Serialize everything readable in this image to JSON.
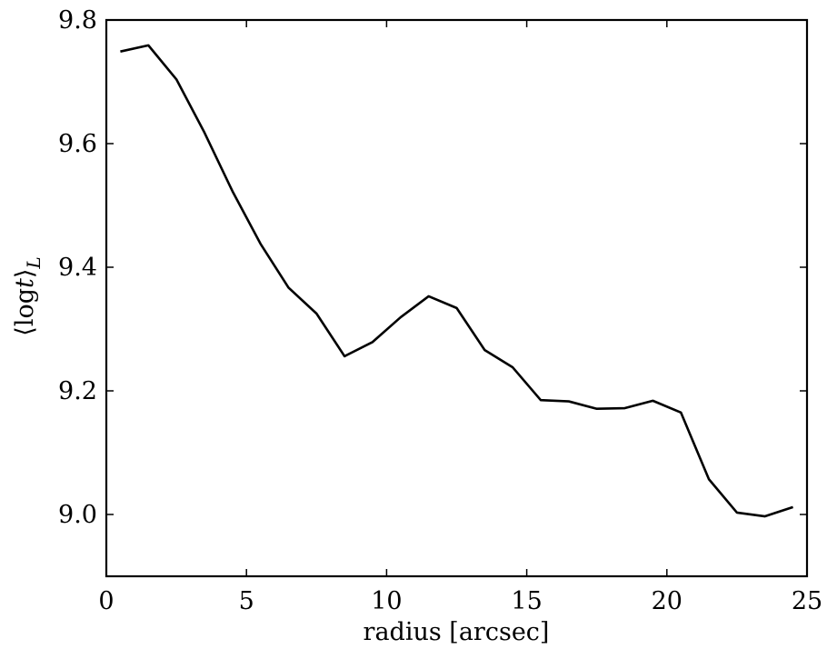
{
  "chart_data": {
    "type": "line",
    "title": "",
    "xlabel": "radius [arcsec]",
    "ylabel": {
      "open": "⟨",
      "func": "log",
      "var": "t",
      "close": "⟩",
      "sub": "L"
    },
    "xlim": [
      0,
      25
    ],
    "ylim": [
      8.9,
      9.8
    ],
    "xticks": [
      0,
      5,
      10,
      15,
      20,
      25
    ],
    "yticks": [
      9.0,
      9.2,
      9.4,
      9.6,
      9.8
    ],
    "xtick_labels": [
      "0",
      "5",
      "10",
      "15",
      "20",
      "25"
    ],
    "ytick_labels": [
      "9.0",
      "9.2",
      "9.4",
      "9.6",
      "9.8"
    ],
    "grid": false,
    "line_color": "#000000",
    "series": [
      {
        "x": [
          0.5,
          1.5,
          2.5,
          3.5,
          4.5,
          5.5,
          6.5,
          7.5,
          8.5,
          9.5,
          10.5,
          11.5,
          12.5,
          13.5,
          14.5,
          15.5,
          16.5,
          17.5,
          18.5,
          19.5,
          20.5,
          21.5,
          22.5,
          23.5,
          24.5
        ],
        "y": [
          9.749,
          9.759,
          9.704,
          9.618,
          9.523,
          9.438,
          9.367,
          9.325,
          9.256,
          9.279,
          9.319,
          9.353,
          9.334,
          9.266,
          9.238,
          9.185,
          9.183,
          9.171,
          9.172,
          9.184,
          9.165,
          9.057,
          9.003,
          8.997,
          9.012
        ]
      }
    ]
  }
}
